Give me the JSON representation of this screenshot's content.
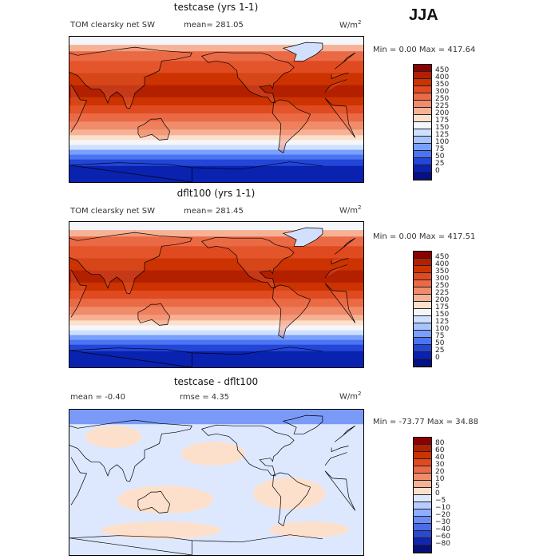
{
  "season": "JJA",
  "panels": [
    {
      "id": "testcase",
      "title": "testcase (yrs 1-1)",
      "variable": "TOM clearsky net SW",
      "left_stat": "",
      "mean_text": "mean= 281.05",
      "rmse_text": "",
      "units": "W/m",
      "units_sup": "2",
      "min_text": "Min =    0.00 Max = 417.64",
      "levels": [
        "450",
        "400",
        "350",
        "300",
        "250",
        "225",
        "200",
        "175",
        "150",
        "125",
        "100",
        "75",
        "50",
        "25",
        "0"
      ],
      "colors": [
        "#8b0000",
        "#b22000",
        "#cc3300",
        "#e04a20",
        "#ea6a45",
        "#f08c6a",
        "#f6b296",
        "#fde0cc",
        "#f4f6fa",
        "#cfe0ff",
        "#a8c4ff",
        "#7aa0ff",
        "#4a74f2",
        "#2246d8",
        "#0a22b0",
        "#040f8a"
      ]
    },
    {
      "id": "dflt100",
      "title": "dflt100 (yrs 1-1)",
      "variable": "TOM clearsky net SW",
      "left_stat": "",
      "mean_text": "mean= 281.45",
      "rmse_text": "",
      "units": "W/m",
      "units_sup": "2",
      "min_text": "Min =    0.00 Max = 417.51",
      "levels": [
        "450",
        "400",
        "350",
        "300",
        "250",
        "225",
        "200",
        "175",
        "150",
        "125",
        "100",
        "75",
        "50",
        "25",
        "0"
      ],
      "colors": [
        "#8b0000",
        "#b22000",
        "#cc3300",
        "#e04a20",
        "#ea6a45",
        "#f08c6a",
        "#f6b296",
        "#fde0cc",
        "#f4f6fa",
        "#cfe0ff",
        "#a8c4ff",
        "#7aa0ff",
        "#4a74f2",
        "#2246d8",
        "#0a22b0",
        "#040f8a"
      ]
    },
    {
      "id": "diff",
      "title": "testcase - dflt100",
      "variable": "",
      "left_stat": "mean =   -0.40",
      "mean_text": "",
      "rmse_text": "rmse =    4.35",
      "units": "W/m",
      "units_sup": "2",
      "min_text": "Min = -73.77 Max =  34.88",
      "levels": [
        "80",
        "60",
        "40",
        "30",
        "20",
        "10",
        "5",
        "0",
        "−5",
        "−10",
        "−20",
        "−30",
        "−40",
        "−60",
        "−80"
      ],
      "colors": [
        "#8b0000",
        "#b22000",
        "#cc3300",
        "#e04a20",
        "#ea6a45",
        "#f08c6a",
        "#f6b296",
        "#fde0cc",
        "#dde8ff",
        "#b8ccff",
        "#90aeff",
        "#6a8cf6",
        "#4a6ce8",
        "#2a48d0",
        "#1026b0",
        "#050f80"
      ]
    }
  ]
}
